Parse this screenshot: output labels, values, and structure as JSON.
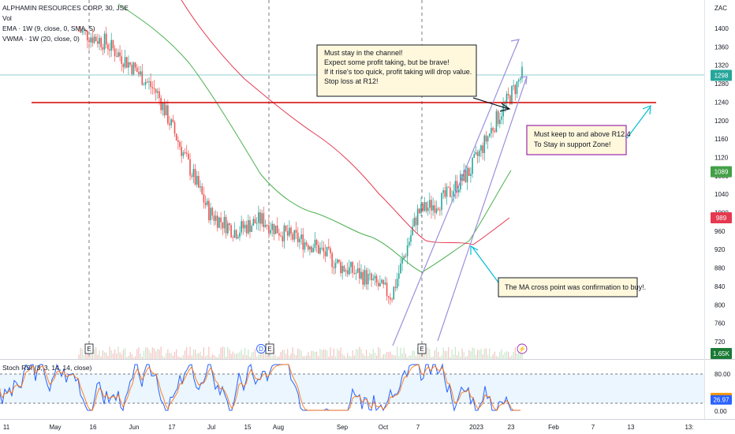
{
  "header": {
    "symbol_line": "ALPHAMIN RESOURCES CORP, 30, JSE",
    "vol_label": "Vol",
    "ema_label": "EMA · 1W (9, close, 0, SMA, 5)",
    "vwma_label": "VWMA · 1W (20, close, 0)"
  },
  "currency": "ZAC",
  "price_axis": {
    "ticks": [
      "1400",
      "1360",
      "1320",
      "1280",
      "1240",
      "1200",
      "1160",
      "1120",
      "1080",
      "1040",
      "1000",
      "960",
      "920",
      "880",
      "840",
      "800",
      "760",
      "720"
    ],
    "badges": [
      {
        "label": "1298",
        "color": "#26a69a"
      },
      {
        "label": "1089",
        "color": "#43a047"
      },
      {
        "label": "989",
        "color": "#e53950"
      },
      {
        "label": "1.65K",
        "color": "#1b7a35"
      }
    ]
  },
  "rsi": {
    "label": "Stoch RSI (3, 3, 14, 14, close)",
    "ticks": [
      "80.00",
      "0.00"
    ],
    "badges": [
      {
        "label": "31.55",
        "color": "#ff9800"
      },
      {
        "label": "26.97",
        "color": "#2962ff"
      }
    ]
  },
  "time_axis": [
    "11",
    "May",
    "16",
    "Jun",
    "17",
    "Jul",
    "15",
    "Aug",
    "Sep",
    "Oct",
    "7",
    "2023",
    "23",
    "Feb",
    "7",
    "13",
    "13:"
  ],
  "event_markers": [
    "E",
    "D",
    "E",
    "E",
    "⚡"
  ],
  "annotations": {
    "channel_note": [
      "Must stay in the channel!",
      "Expect some profit taking, but be brave!",
      "If it rise's too quick, profit taking will drop value.",
      "Stop loss at R12!"
    ],
    "support_note": [
      "Must keep to and above R12.4",
      "To Stay in support Zone!"
    ],
    "ma_note": [
      "The MA cross point was confirmation to buy!."
    ]
  },
  "chart_data": {
    "type": "candlestick",
    "currency": "ZAC",
    "ylim": [
      700,
      1420
    ],
    "support_line": 1240,
    "last_price": 1298,
    "ema_1w_last": 1089,
    "vwma_1w_last": 989,
    "volume_last": "1.65K",
    "price_path": [
      {
        "x": "Apr 11",
        "close": 1395
      },
      {
        "x": "May",
        "close": 1370
      },
      {
        "x": "May 16",
        "close": 1320
      },
      {
        "x": "Jun",
        "close": 1260
      },
      {
        "x": "Jun 17",
        "close": 1130
      },
      {
        "x": "Jul",
        "close": 1000
      },
      {
        "x": "Jul 15",
        "close": 960
      },
      {
        "x": "Aug",
        "close": 985
      },
      {
        "x": "Aug mid",
        "close": 950
      },
      {
        "x": "Sep",
        "close": 930
      },
      {
        "x": "Sep mid",
        "close": 885
      },
      {
        "x": "Oct",
        "close": 860
      },
      {
        "x": "Oct 7",
        "close": 820
      },
      {
        "x": "Oct end",
        "close": 1000
      },
      {
        "x": "Nov",
        "close": 1030
      },
      {
        "x": "Dec",
        "close": 1090
      },
      {
        "x": "2023",
        "close": 1200
      },
      {
        "x": "Jan 23",
        "close": 1298
      }
    ],
    "series": [
      {
        "name": "EMA · 1W (9, close, 0, SMA, 5)",
        "color": "#4caf50"
      },
      {
        "name": "VWMA · 1W (20, close, 0)",
        "color": "#e53950"
      }
    ],
    "stoch_rsi": {
      "k_last": 31.55,
      "d_last": 26.97,
      "upper": 80,
      "lower": 20
    }
  }
}
